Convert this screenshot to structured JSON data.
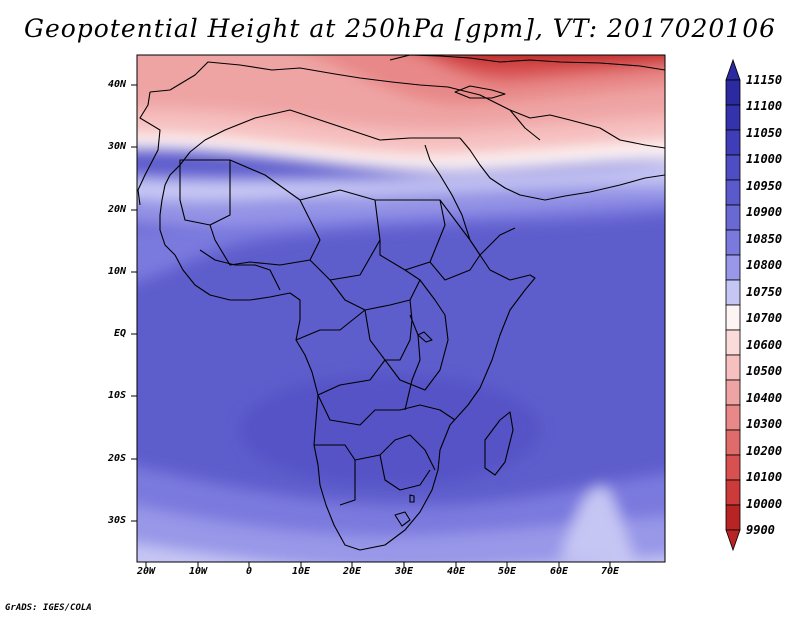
{
  "title": "Geopotential Height at 250hPa [gpm], VT: 2017020106",
  "footer": "GrADS: IGES/COLA",
  "map": {
    "lat_labels": [
      "40N",
      "30N",
      "20N",
      "10N",
      "EQ",
      "10S",
      "20S",
      "30S"
    ],
    "lon_labels": [
      "20W",
      "10W",
      "0",
      "10E",
      "20E",
      "30E",
      "40E",
      "50E",
      "60E",
      "70E"
    ]
  },
  "colorbar": {
    "labels": [
      "11150",
      "11100",
      "11050",
      "11000",
      "10950",
      "10900",
      "10850",
      "10800",
      "10750",
      "10700",
      "10600",
      "10500",
      "10400",
      "10300",
      "10200",
      "10100",
      "10000",
      "9900"
    ],
    "colors": [
      "#2b2aa0",
      "#3433ac",
      "#3f3eb8",
      "#4e4dc3",
      "#5b5acc",
      "#6a69d4",
      "#7a79de",
      "#9897e8",
      "#c6c6f4",
      "#fdf4f4",
      "#fbdada",
      "#f6c0c0",
      "#efa4a4",
      "#e88888",
      "#e06b6b",
      "#d85050",
      "#cc3a3a",
      "#b82424"
    ]
  }
}
